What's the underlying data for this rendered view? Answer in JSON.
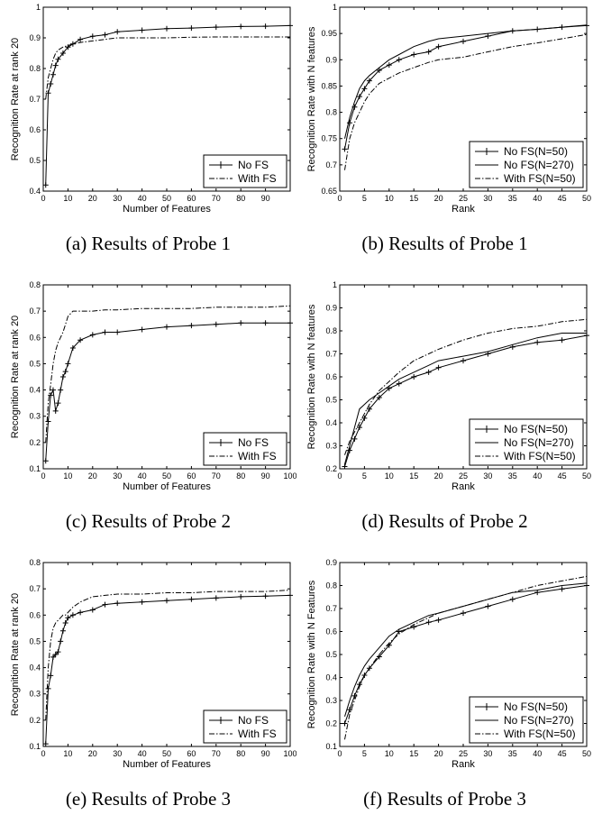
{
  "chart_data": [
    {
      "id": "a",
      "type": "line",
      "caption": "(a) Results of Probe 1",
      "xlabel": "Number of Features",
      "ylabel": "Recognition Rate at rank 20",
      "xlim": [
        0,
        100
      ],
      "ylim": [
        0.4,
        1
      ],
      "xticks": [
        0,
        10,
        20,
        30,
        40,
        50,
        60,
        70,
        80,
        90
      ],
      "xtick_labels": [
        "0",
        "10",
        "20",
        "30",
        "40",
        "50",
        "60",
        "70",
        "80",
        "90"
      ],
      "yticks": [
        0.4,
        0.5,
        0.6,
        0.7,
        0.8,
        0.9,
        1.0
      ],
      "ytick_labels": [
        "0.4",
        "0.5",
        "0.6",
        "0.7",
        "0.8",
        "0.9",
        "1"
      ],
      "grid": false,
      "legend_position": "bottom-right",
      "series": [
        {
          "name": "No FS",
          "style": "plus",
          "x": [
            1,
            2,
            3,
            4,
            5,
            6,
            8,
            10,
            12,
            15,
            20,
            25,
            30,
            40,
            50,
            60,
            70,
            80,
            90,
            100
          ],
          "y": [
            0.42,
            0.72,
            0.75,
            0.78,
            0.81,
            0.83,
            0.85,
            0.87,
            0.88,
            0.895,
            0.905,
            0.91,
            0.92,
            0.925,
            0.93,
            0.932,
            0.935,
            0.937,
            0.938,
            0.94
          ]
        },
        {
          "name": "With FS",
          "style": "dashdot",
          "x": [
            1,
            2,
            3,
            4,
            5,
            6,
            8,
            10,
            12,
            15,
            20,
            25,
            30,
            40,
            50,
            60,
            70,
            80,
            90,
            100
          ],
          "y": [
            0.7,
            0.77,
            0.8,
            0.83,
            0.85,
            0.86,
            0.87,
            0.875,
            0.88,
            0.885,
            0.89,
            0.895,
            0.9,
            0.9,
            0.9,
            0.902,
            0.903,
            0.903,
            0.903,
            0.903
          ]
        }
      ]
    },
    {
      "id": "b",
      "type": "line",
      "caption": "(b) Results of Probe 1",
      "xlabel": "Rank",
      "ylabel": "Recognition Rate with N features",
      "xlim": [
        0,
        50
      ],
      "ylim": [
        0.65,
        1
      ],
      "xticks": [
        0,
        5,
        10,
        15,
        20,
        25,
        30,
        35,
        40,
        45,
        50
      ],
      "xtick_labels": [
        "0",
        "5",
        "10",
        "15",
        "20",
        "25",
        "30",
        "35",
        "40",
        "45",
        "50"
      ],
      "yticks": [
        0.65,
        0.7,
        0.75,
        0.8,
        0.85,
        0.9,
        0.95,
        1.0
      ],
      "ytick_labels": [
        "0.65",
        "0.7",
        "0.75",
        "0.8",
        "0.85",
        "0.9",
        "0.95",
        "1"
      ],
      "grid": false,
      "legend_position": "bottom-right",
      "series": [
        {
          "name": "No FS(N=50)",
          "style": "plus",
          "x": [
            1,
            2,
            3,
            4,
            5,
            6,
            8,
            10,
            12,
            15,
            18,
            20,
            25,
            30,
            35,
            40,
            45,
            50
          ],
          "y": [
            0.73,
            0.78,
            0.81,
            0.83,
            0.845,
            0.86,
            0.88,
            0.89,
            0.9,
            0.91,
            0.915,
            0.925,
            0.935,
            0.945,
            0.955,
            0.958,
            0.962,
            0.965
          ]
        },
        {
          "name": "No FS(N=270)",
          "style": "solid",
          "x": [
            1,
            2,
            3,
            4,
            5,
            6,
            8,
            10,
            12,
            15,
            18,
            20,
            25,
            30,
            35,
            40,
            45,
            50
          ],
          "y": [
            0.75,
            0.79,
            0.82,
            0.845,
            0.86,
            0.87,
            0.885,
            0.9,
            0.91,
            0.925,
            0.935,
            0.94,
            0.945,
            0.95,
            0.955,
            0.958,
            0.962,
            0.966
          ]
        },
        {
          "name": "With FS(N=50)",
          "style": "dashdot",
          "x": [
            1,
            2,
            3,
            4,
            5,
            6,
            8,
            10,
            12,
            15,
            18,
            20,
            25,
            30,
            35,
            40,
            45,
            50
          ],
          "y": [
            0.69,
            0.75,
            0.78,
            0.8,
            0.82,
            0.835,
            0.855,
            0.865,
            0.875,
            0.885,
            0.895,
            0.9,
            0.905,
            0.915,
            0.925,
            0.932,
            0.94,
            0.948
          ]
        }
      ]
    },
    {
      "id": "c",
      "type": "line",
      "caption": "(c) Results of Probe 2",
      "xlabel": "Number of Features",
      "ylabel": "Recognition Rate at rank 20",
      "xlim": [
        0,
        100
      ],
      "ylim": [
        0.1,
        0.8
      ],
      "xticks": [
        0,
        10,
        20,
        30,
        40,
        50,
        60,
        70,
        80,
        90,
        100
      ],
      "xtick_labels": [
        "0",
        "10",
        "20",
        "30",
        "40",
        "50",
        "60",
        "70",
        "80",
        "90",
        "100"
      ],
      "yticks": [
        0.1,
        0.2,
        0.3,
        0.4,
        0.5,
        0.6,
        0.7,
        0.8
      ],
      "ytick_labels": [
        "0.1",
        "0.2",
        "0.3",
        "0.4",
        "0.5",
        "0.6",
        "0.7",
        "0.8"
      ],
      "grid": false,
      "legend_position": "bottom-right",
      "series": [
        {
          "name": "No FS",
          "style": "plus",
          "x": [
            1,
            2,
            3,
            4,
            5,
            6,
            7,
            8,
            9,
            10,
            12,
            15,
            20,
            25,
            30,
            40,
            50,
            60,
            70,
            80,
            90,
            100
          ],
          "y": [
            0.13,
            0.28,
            0.38,
            0.4,
            0.32,
            0.35,
            0.4,
            0.45,
            0.47,
            0.5,
            0.56,
            0.59,
            0.61,
            0.62,
            0.62,
            0.63,
            0.64,
            0.645,
            0.65,
            0.655,
            0.655,
            0.655
          ]
        },
        {
          "name": "With FS",
          "style": "dashdot",
          "x": [
            1,
            2,
            3,
            4,
            5,
            6,
            7,
            8,
            9,
            10,
            12,
            15,
            20,
            25,
            30,
            40,
            50,
            60,
            70,
            80,
            90,
            100
          ],
          "y": [
            0.2,
            0.35,
            0.42,
            0.5,
            0.55,
            0.58,
            0.6,
            0.62,
            0.65,
            0.68,
            0.7,
            0.7,
            0.7,
            0.705,
            0.705,
            0.71,
            0.71,
            0.71,
            0.715,
            0.715,
            0.715,
            0.72
          ]
        }
      ]
    },
    {
      "id": "d",
      "type": "line",
      "caption": "(d) Results of Probe 2",
      "xlabel": "Rank",
      "ylabel": "Recognition Rate with N features",
      "xlim": [
        0,
        50
      ],
      "ylim": [
        0.2,
        1
      ],
      "xticks": [
        0,
        5,
        10,
        15,
        20,
        25,
        30,
        35,
        40,
        45,
        50
      ],
      "xtick_labels": [
        "0",
        "5",
        "10",
        "15",
        "20",
        "25",
        "30",
        "35",
        "40",
        "45",
        "50"
      ],
      "yticks": [
        0.2,
        0.3,
        0.4,
        0.5,
        0.6,
        0.7,
        0.8,
        0.9,
        1.0
      ],
      "ytick_labels": [
        "0.2",
        "0.3",
        "0.4",
        "0.5",
        "0.6",
        "0.7",
        "0.8",
        "0.9",
        "1"
      ],
      "grid": false,
      "legend_position": "bottom-right",
      "series": [
        {
          "name": "No FS(N=50)",
          "style": "plus",
          "x": [
            1,
            2,
            3,
            4,
            5,
            6,
            8,
            10,
            12,
            15,
            18,
            20,
            25,
            30,
            35,
            40,
            45,
            50
          ],
          "y": [
            0.21,
            0.28,
            0.33,
            0.38,
            0.42,
            0.46,
            0.51,
            0.55,
            0.57,
            0.6,
            0.62,
            0.64,
            0.67,
            0.7,
            0.73,
            0.75,
            0.76,
            0.78
          ]
        },
        {
          "name": "No FS(N=270)",
          "style": "solid",
          "x": [
            1,
            2,
            3,
            4,
            5,
            6,
            8,
            10,
            12,
            15,
            18,
            20,
            25,
            30,
            35,
            40,
            45,
            50
          ],
          "y": [
            0.22,
            0.3,
            0.38,
            0.46,
            0.48,
            0.5,
            0.53,
            0.56,
            0.59,
            0.62,
            0.65,
            0.67,
            0.69,
            0.71,
            0.74,
            0.77,
            0.79,
            0.79
          ]
        },
        {
          "name": "With FS(N=50)",
          "style": "dashdot",
          "x": [
            1,
            2,
            3,
            4,
            5,
            6,
            8,
            10,
            12,
            15,
            18,
            20,
            25,
            30,
            35,
            40,
            45,
            50
          ],
          "y": [
            0.26,
            0.32,
            0.36,
            0.4,
            0.44,
            0.48,
            0.54,
            0.58,
            0.62,
            0.67,
            0.7,
            0.72,
            0.76,
            0.79,
            0.81,
            0.82,
            0.84,
            0.85
          ]
        }
      ]
    },
    {
      "id": "e",
      "type": "line",
      "caption": "(e) Results of Probe 3",
      "xlabel": "Number of Features",
      "ylabel": "Recognition Rate at rank 20",
      "xlim": [
        0,
        100
      ],
      "ylim": [
        0.1,
        0.8
      ],
      "xticks": [
        0,
        10,
        20,
        30,
        40,
        50,
        60,
        70,
        80,
        90,
        100
      ],
      "xtick_labels": [
        "0",
        "10",
        "20",
        "30",
        "40",
        "50",
        "60",
        "70",
        "80",
        "90",
        "100"
      ],
      "yticks": [
        0.1,
        0.2,
        0.3,
        0.4,
        0.5,
        0.6,
        0.7,
        0.8
      ],
      "ytick_labels": [
        "0.1",
        "0.2",
        "0.3",
        "0.4",
        "0.5",
        "0.6",
        "0.7",
        "0.8"
      ],
      "grid": false,
      "legend_position": "bottom-right",
      "series": [
        {
          "name": "No FS",
          "style": "plus",
          "x": [
            1,
            2,
            3,
            4,
            5,
            6,
            7,
            8,
            9,
            10,
            12,
            15,
            20,
            25,
            30,
            40,
            50,
            60,
            70,
            80,
            90,
            100
          ],
          "y": [
            0.11,
            0.32,
            0.37,
            0.44,
            0.45,
            0.46,
            0.5,
            0.54,
            0.57,
            0.59,
            0.6,
            0.61,
            0.62,
            0.64,
            0.645,
            0.65,
            0.655,
            0.66,
            0.665,
            0.67,
            0.672,
            0.675
          ]
        },
        {
          "name": "With FS",
          "style": "dashdot",
          "x": [
            1,
            2,
            3,
            4,
            5,
            6,
            7,
            8,
            9,
            10,
            12,
            15,
            20,
            25,
            30,
            40,
            50,
            60,
            70,
            80,
            90,
            100
          ],
          "y": [
            0.2,
            0.4,
            0.5,
            0.55,
            0.57,
            0.58,
            0.59,
            0.6,
            0.6,
            0.61,
            0.63,
            0.65,
            0.67,
            0.675,
            0.68,
            0.68,
            0.685,
            0.685,
            0.69,
            0.69,
            0.69,
            0.695
          ]
        }
      ]
    },
    {
      "id": "f",
      "type": "line",
      "caption": "(f) Results of Probe 3",
      "xlabel": "Rank",
      "ylabel": "Recognition Rate with N Features",
      "xlim": [
        0,
        50
      ],
      "ylim": [
        0.1,
        0.9
      ],
      "xticks": [
        0,
        5,
        10,
        15,
        20,
        25,
        30,
        35,
        40,
        45,
        50
      ],
      "xtick_labels": [
        "0",
        "5",
        "10",
        "15",
        "20",
        "25",
        "30",
        "35",
        "40",
        "45",
        "50"
      ],
      "yticks": [
        0.1,
        0.2,
        0.3,
        0.4,
        0.5,
        0.6,
        0.7,
        0.8,
        0.9
      ],
      "ytick_labels": [
        "0.1",
        "0.2",
        "0.3",
        "0.4",
        "0.5",
        "0.6",
        "0.7",
        "0.8",
        "0.9"
      ],
      "grid": false,
      "legend_position": "bottom-right",
      "series": [
        {
          "name": "No FS(N=50)",
          "style": "plus",
          "x": [
            1,
            2,
            3,
            4,
            5,
            6,
            8,
            10,
            12,
            15,
            18,
            20,
            25,
            30,
            35,
            40,
            45,
            50
          ],
          "y": [
            0.2,
            0.26,
            0.32,
            0.37,
            0.41,
            0.44,
            0.49,
            0.54,
            0.6,
            0.62,
            0.64,
            0.65,
            0.68,
            0.71,
            0.74,
            0.77,
            0.785,
            0.8
          ]
        },
        {
          "name": "No FS(N=270)",
          "style": "solid",
          "x": [
            1,
            2,
            3,
            4,
            5,
            6,
            8,
            10,
            12,
            15,
            18,
            20,
            25,
            30,
            35,
            40,
            45,
            50
          ],
          "y": [
            0.23,
            0.3,
            0.36,
            0.41,
            0.45,
            0.48,
            0.53,
            0.58,
            0.61,
            0.64,
            0.67,
            0.68,
            0.71,
            0.74,
            0.77,
            0.78,
            0.8,
            0.81
          ]
        },
        {
          "name": "With FS(N=50)",
          "style": "dashdot",
          "x": [
            1,
            2,
            3,
            4,
            5,
            6,
            8,
            10,
            12,
            15,
            18,
            20,
            25,
            30,
            35,
            40,
            45,
            50
          ],
          "y": [
            0.13,
            0.24,
            0.3,
            0.36,
            0.41,
            0.44,
            0.5,
            0.55,
            0.59,
            0.63,
            0.66,
            0.68,
            0.71,
            0.74,
            0.77,
            0.8,
            0.82,
            0.84
          ]
        }
      ]
    }
  ]
}
